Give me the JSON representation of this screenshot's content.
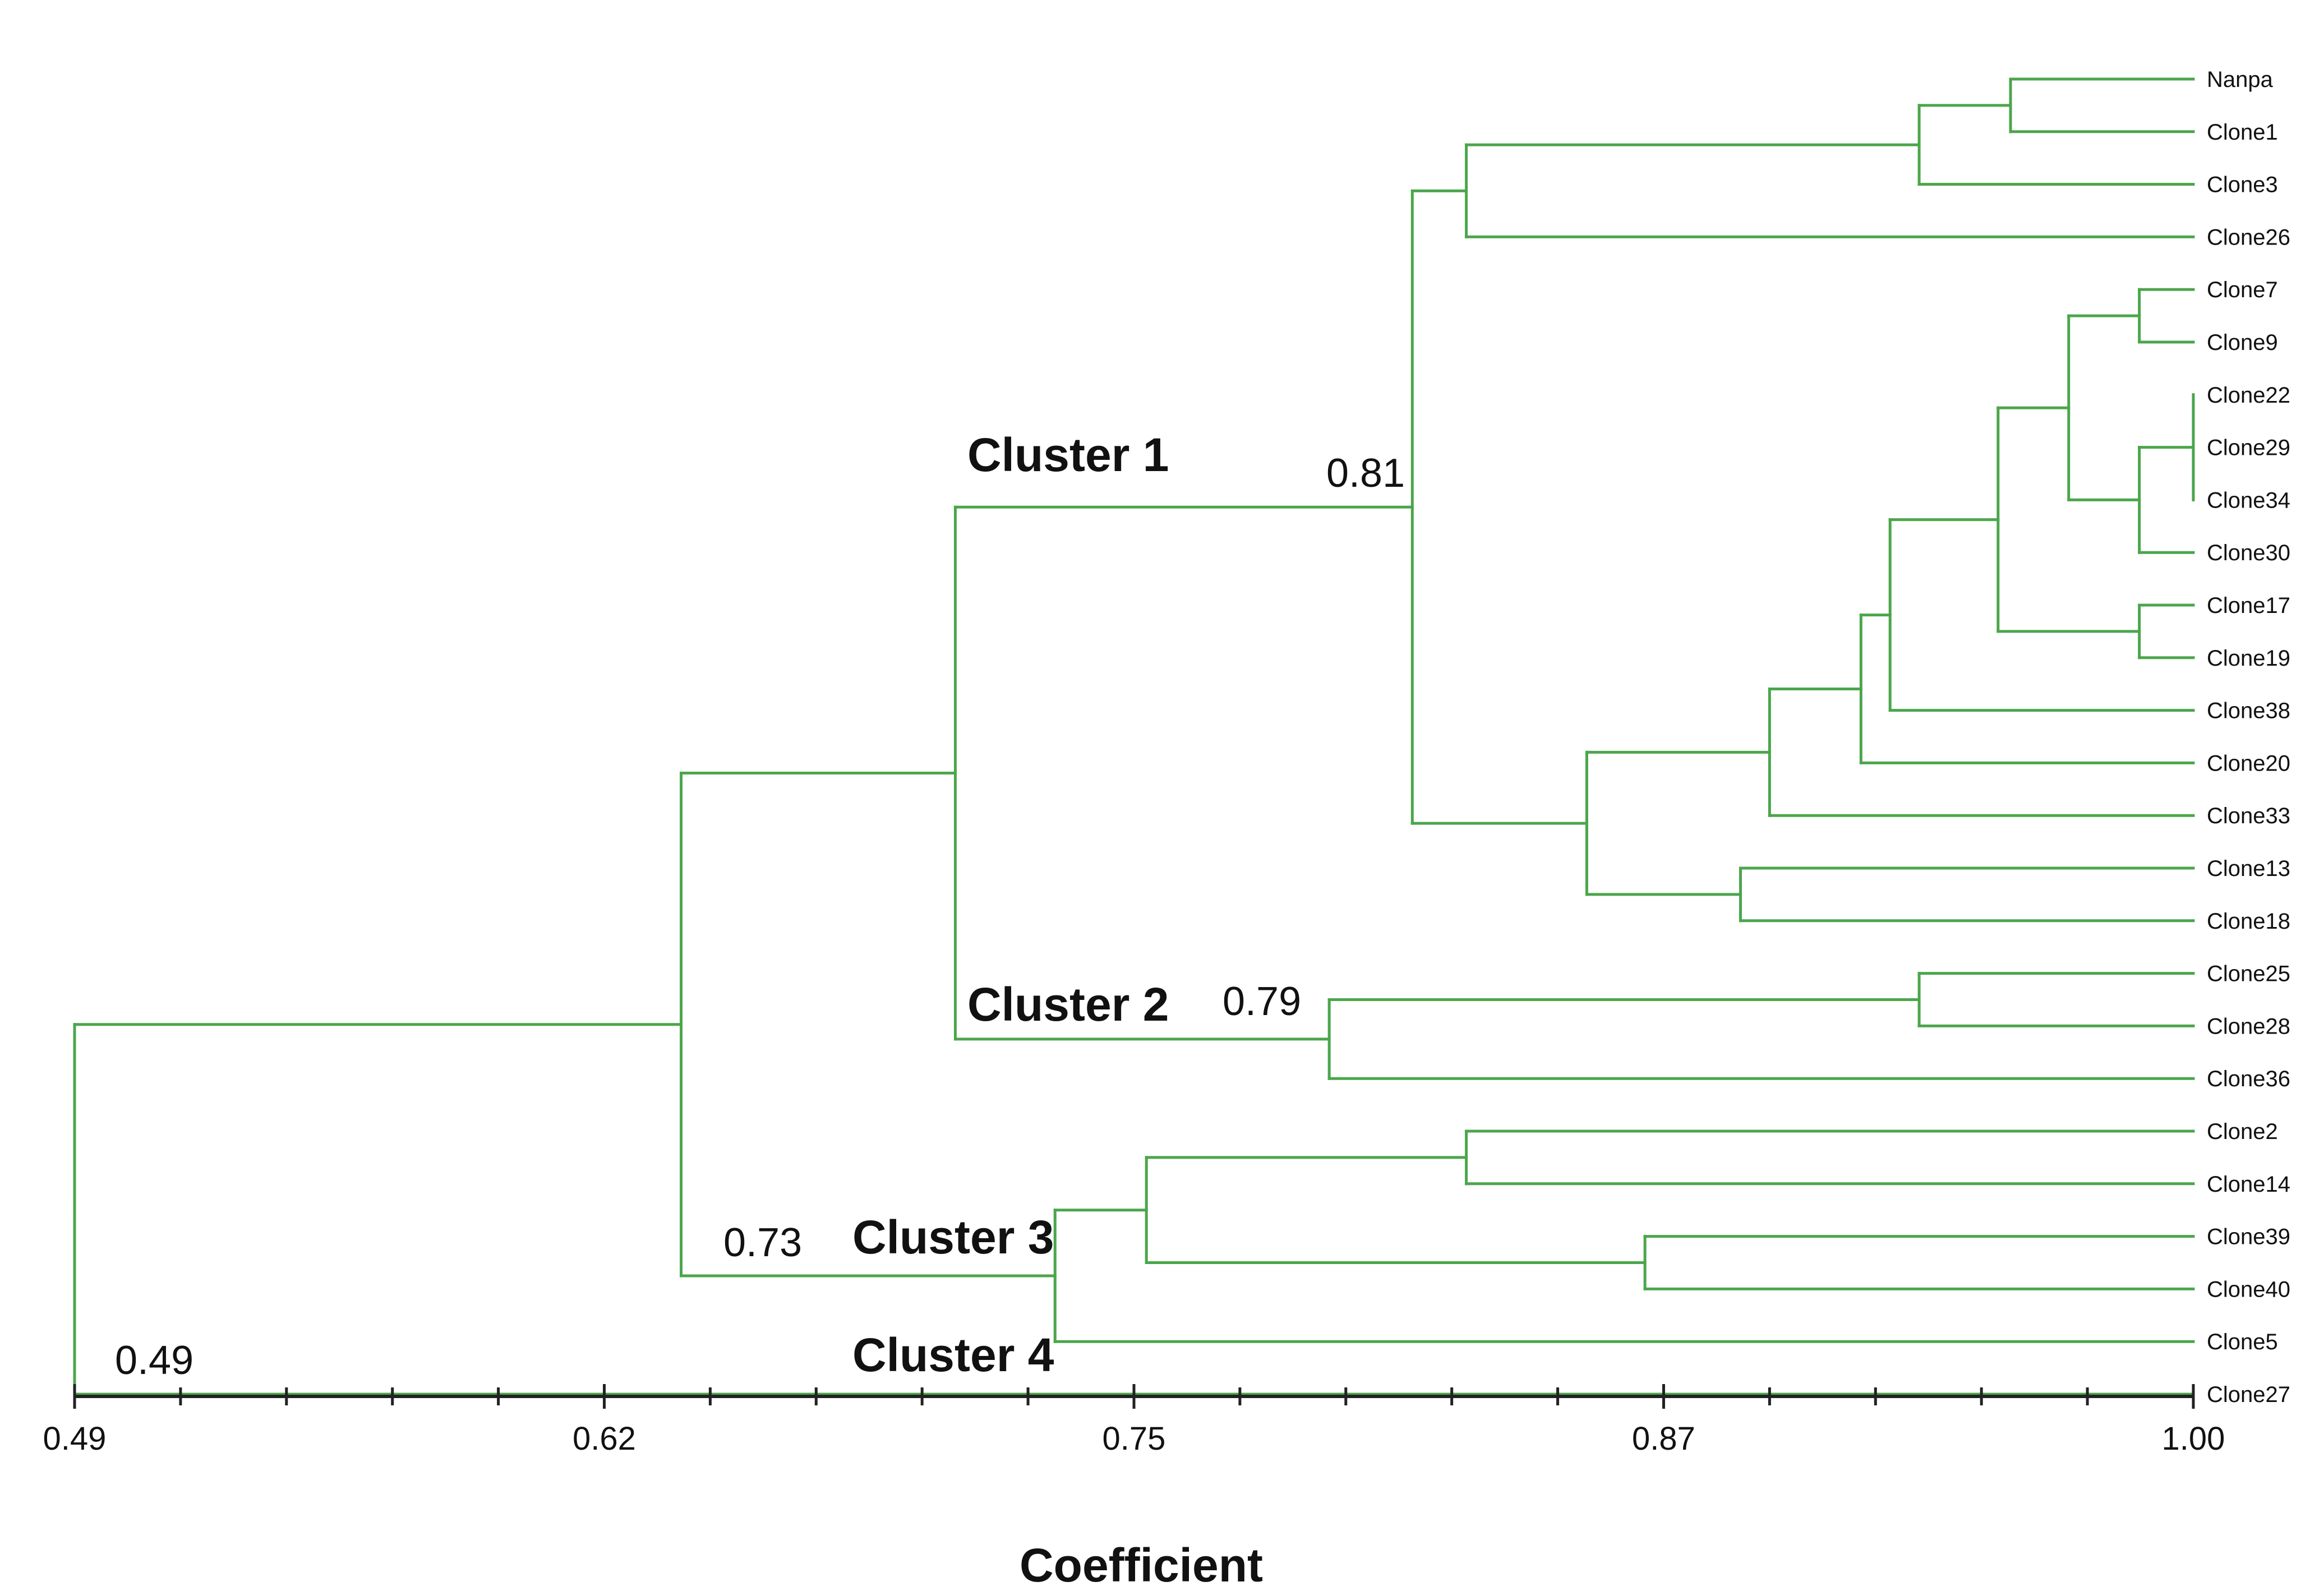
{
  "chart_data": {
    "type": "dendrogram",
    "xlabel": "Coefficient",
    "xlim": [
      0.49,
      1.0
    ],
    "axis_labels": [
      "0.49",
      "0.62",
      "0.75",
      "0.87",
      "1.00"
    ],
    "leaves": [
      "Nanpa",
      "Clone1",
      "Clone3",
      "Clone26",
      "Clone7",
      "Clone9",
      "Clone22",
      "Clone29",
      "Clone34",
      "Clone30",
      "Clone17",
      "Clone19",
      "Clone38",
      "Clone20",
      "Clone33",
      "Clone13",
      "Clone18",
      "Clone25",
      "Clone28",
      "Clone36",
      "Clone2",
      "Clone14",
      "Clone39",
      "Clone40",
      "Clone5",
      "Clone27"
    ],
    "tree": {
      "sim": 0.49,
      "children": [
        {
          "sim": 0.636,
          "children": [
            {
              "sim": 0.702,
              "children": [
                {
                  "sim": 0.812,
                  "children": [
                    {
                      "sim": 0.825,
                      "children": [
                        {
                          "sim": 0.934,
                          "children": [
                            {
                              "sim": 0.956,
                              "children": [
                                {
                                  "leaf": "Nanpa"
                                },
                                {
                                  "leaf": "Clone1"
                                }
                              ]
                            },
                            {
                              "leaf": "Clone3"
                            }
                          ]
                        },
                        {
                          "leaf": "Clone26"
                        }
                      ]
                    },
                    {
                      "sim": 0.854,
                      "children": [
                        {
                          "sim": 0.898,
                          "children": [
                            {
                              "sim": 0.92,
                              "children": [
                                {
                                  "sim": 0.927,
                                  "children": [
                                    {
                                      "sim": 0.953,
                                      "children": [
                                        {
                                          "sim": 0.97,
                                          "children": [
                                            {
                                              "sim": 0.987,
                                              "children": [
                                                {
                                                  "leaf": "Clone7"
                                                },
                                                {
                                                  "leaf": "Clone9"
                                                }
                                              ]
                                            },
                                            {
                                              "sim": 0.987,
                                              "children": [
                                                {
                                                  "sim": 1.0,
                                                  "children": [
                                                    {
                                                      "leaf": "Clone22"
                                                    },
                                                    {
                                                      "leaf": "Clone29"
                                                    },
                                                    {
                                                      "leaf": "Clone34"
                                                    }
                                                  ]
                                                },
                                                {
                                                  "leaf": "Clone30"
                                                }
                                              ]
                                            }
                                          ]
                                        },
                                        {
                                          "sim": 0.987,
                                          "children": [
                                            {
                                              "leaf": "Clone17"
                                            },
                                            {
                                              "leaf": "Clone19"
                                            }
                                          ]
                                        }
                                      ]
                                    },
                                    {
                                      "leaf": "Clone38"
                                    }
                                  ]
                                },
                                {
                                  "leaf": "Clone20"
                                }
                              ]
                            },
                            {
                              "leaf": "Clone33"
                            }
                          ]
                        },
                        {
                          "sim": 0.891,
                          "children": [
                            {
                              "leaf": "Clone13"
                            },
                            {
                              "leaf": "Clone18"
                            }
                          ]
                        }
                      ]
                    }
                  ]
                },
                {
                  "sim": 0.792,
                  "children": [
                    {
                      "sim": 0.934,
                      "children": [
                        {
                          "leaf": "Clone25"
                        },
                        {
                          "leaf": "Clone28"
                        }
                      ]
                    },
                    {
                      "leaf": "Clone36"
                    }
                  ]
                }
              ]
            },
            {
              "sim": 0.726,
              "children": [
                {
                  "sim": 0.748,
                  "children": [
                    {
                      "sim": 0.825,
                      "children": [
                        {
                          "leaf": "Clone2"
                        },
                        {
                          "leaf": "Clone14"
                        }
                      ]
                    },
                    {
                      "sim": 0.868,
                      "children": [
                        {
                          "leaf": "Clone39"
                        },
                        {
                          "leaf": "Clone40"
                        }
                      ]
                    }
                  ]
                },
                {
                  "leaf": "Clone5"
                }
              ]
            }
          ]
        },
        {
          "leaf": "Clone27"
        }
      ]
    },
    "cluster_labels": [
      {
        "text": "Cluster 1",
        "node_value": "0.81"
      },
      {
        "text": "Cluster 2",
        "node_value": "0.79"
      },
      {
        "text": "Cluster 3",
        "node_value": "0.73"
      },
      {
        "text": "Cluster 4",
        "node_value": "0.49"
      }
    ]
  }
}
